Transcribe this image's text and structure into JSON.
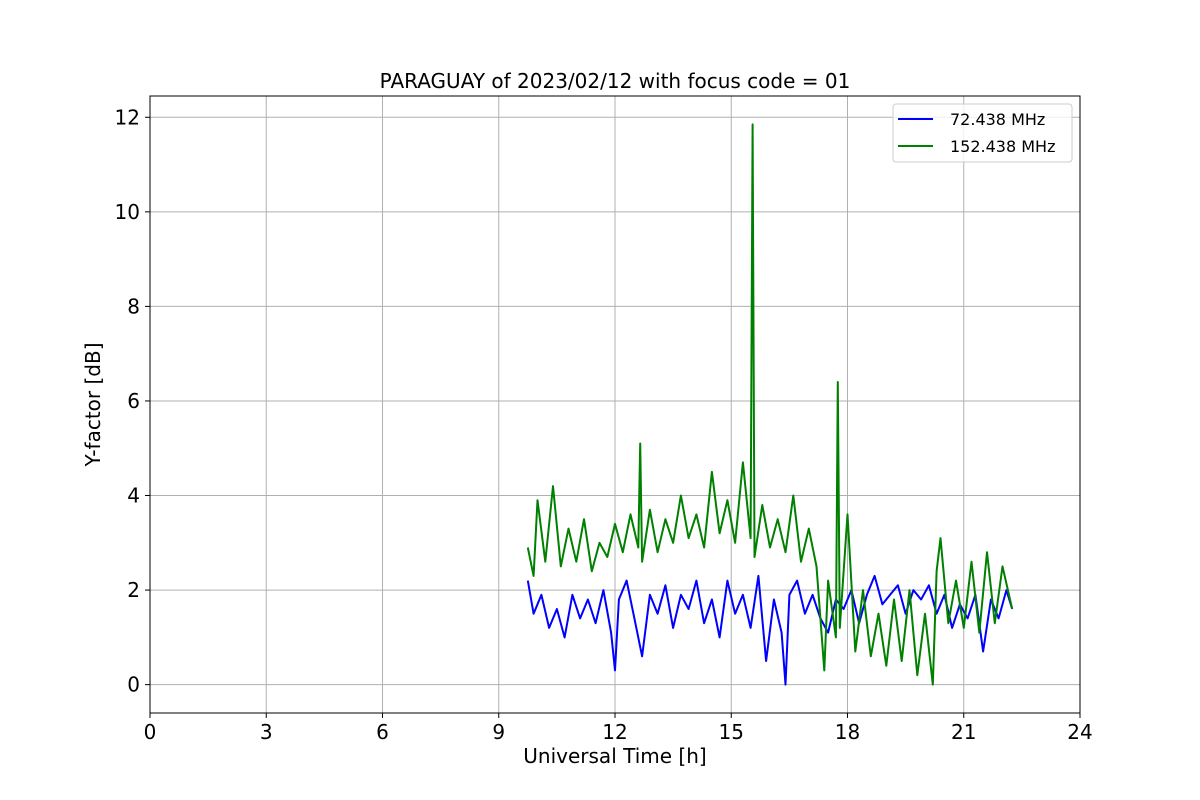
{
  "chart_data": {
    "type": "line",
    "title": "PARAGUAY of 2023/02/12 with focus code = 01",
    "xlabel": "Universal Time [h]",
    "ylabel": "Y-factor [dB]",
    "xlim": [
      0,
      24
    ],
    "ylim": [
      -0.6,
      12.45
    ],
    "xticks": [
      0,
      3,
      6,
      9,
      12,
      15,
      18,
      21,
      24
    ],
    "yticks": [
      0,
      2,
      4,
      6,
      8,
      10,
      12
    ],
    "grid": true,
    "legend_position": "upper right",
    "series": [
      {
        "name": "  72.438 MHz",
        "color": "#0000ff",
        "x": [
          9.75,
          9.9,
          10.1,
          10.3,
          10.5,
          10.7,
          10.9,
          11.1,
          11.3,
          11.5,
          11.7,
          11.9,
          12.0,
          12.1,
          12.3,
          12.5,
          12.7,
          12.9,
          13.1,
          13.3,
          13.5,
          13.7,
          13.9,
          14.1,
          14.3,
          14.5,
          14.7,
          14.9,
          15.1,
          15.3,
          15.5,
          15.7,
          15.9,
          16.1,
          16.3,
          16.4,
          16.5,
          16.7,
          16.9,
          17.1,
          17.3,
          17.5,
          17.7,
          17.9,
          18.1,
          18.3,
          18.5,
          18.7,
          18.9,
          19.1,
          19.3,
          19.5,
          19.7,
          19.9,
          20.1,
          20.3,
          20.5,
          20.7,
          20.9,
          21.1,
          21.3,
          21.5,
          21.7,
          21.9,
          22.1,
          22.25
        ],
        "values": [
          2.2,
          1.5,
          1.9,
          1.2,
          1.6,
          1.0,
          1.9,
          1.4,
          1.8,
          1.3,
          2.0,
          1.1,
          0.3,
          1.8,
          2.2,
          1.4,
          0.6,
          1.9,
          1.5,
          2.1,
          1.2,
          1.9,
          1.6,
          2.2,
          1.3,
          1.8,
          1.0,
          2.2,
          1.5,
          1.9,
          1.2,
          2.3,
          0.5,
          1.8,
          1.1,
          0.0,
          1.9,
          2.2,
          1.5,
          1.9,
          1.4,
          1.1,
          1.8,
          1.6,
          2.0,
          1.3,
          1.9,
          2.3,
          1.7,
          1.9,
          2.1,
          1.5,
          2.0,
          1.8,
          2.1,
          1.5,
          1.9,
          1.2,
          1.7,
          1.4,
          1.9,
          0.7,
          1.8,
          1.4,
          2.0,
          1.6
        ]
      },
      {
        "name": "152.438 MHz",
        "color": "#008000",
        "x": [
          9.75,
          9.9,
          10.0,
          10.2,
          10.4,
          10.6,
          10.8,
          11.0,
          11.2,
          11.4,
          11.6,
          11.8,
          12.0,
          12.2,
          12.4,
          12.6,
          12.65,
          12.7,
          12.9,
          13.1,
          13.3,
          13.5,
          13.7,
          13.9,
          14.1,
          14.3,
          14.5,
          14.7,
          14.9,
          15.1,
          15.3,
          15.5,
          15.55,
          15.6,
          15.8,
          16.0,
          16.2,
          16.4,
          16.6,
          16.8,
          17.0,
          17.2,
          17.4,
          17.5,
          17.7,
          17.75,
          17.8,
          18.0,
          18.2,
          18.4,
          18.6,
          18.8,
          19.0,
          19.2,
          19.4,
          19.6,
          19.8,
          20.0,
          20.2,
          20.3,
          20.4,
          20.6,
          20.8,
          21.0,
          21.2,
          21.4,
          21.6,
          21.8,
          22.0,
          22.25
        ],
        "values": [
          2.9,
          2.3,
          3.9,
          2.6,
          4.2,
          2.5,
          3.3,
          2.6,
          3.5,
          2.4,
          3.0,
          2.7,
          3.4,
          2.8,
          3.6,
          2.9,
          5.1,
          2.6,
          3.7,
          2.8,
          3.5,
          3.0,
          4.0,
          3.1,
          3.6,
          2.9,
          4.5,
          3.2,
          3.9,
          3.0,
          4.7,
          3.1,
          11.85,
          2.7,
          3.8,
          2.9,
          3.5,
          2.8,
          4.0,
          2.6,
          3.3,
          2.5,
          0.3,
          2.2,
          1.0,
          6.4,
          1.2,
          3.6,
          0.7,
          2.0,
          0.6,
          1.5,
          0.4,
          1.8,
          0.5,
          2.0,
          0.2,
          1.5,
          0.0,
          2.4,
          3.1,
          1.3,
          2.2,
          1.2,
          2.6,
          1.1,
          2.8,
          1.3,
          2.5,
          1.6
        ]
      }
    ]
  }
}
